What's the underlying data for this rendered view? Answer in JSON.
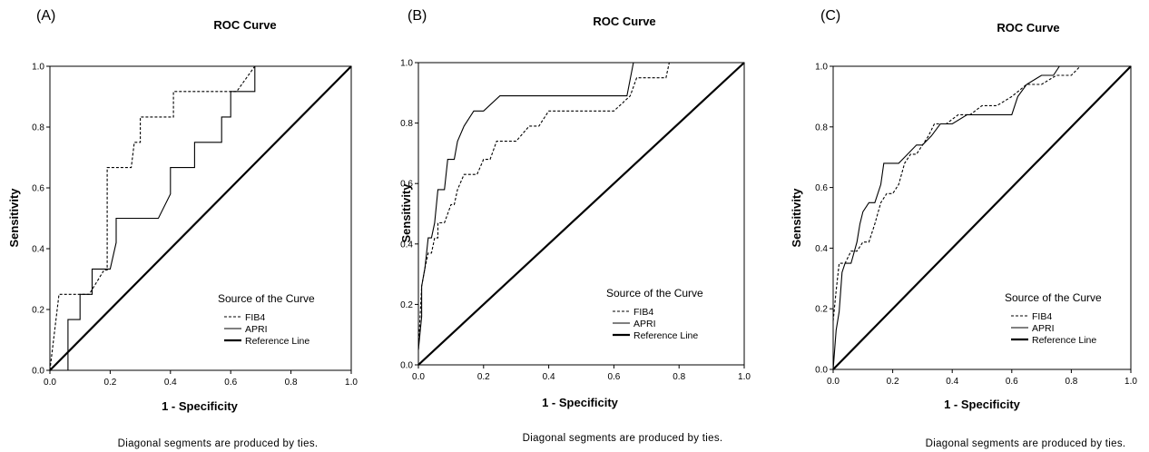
{
  "chart_data": [
    {
      "type": "line",
      "panel_label": "(A)",
      "title": "ROC Curve",
      "xlabel": "1 - Specificity",
      "ylabel": "Sensitivity",
      "xlim": [
        0,
        1
      ],
      "ylim": [
        0,
        1
      ],
      "xticks": [
        "0.0",
        "0.2",
        "0.4",
        "0.6",
        "0.8",
        "1.0"
      ],
      "yticks": [
        "0.0",
        "0.2",
        "0.4",
        "0.6",
        "0.8",
        "1.0"
      ],
      "legend_title": "Source of the Curve",
      "legend_position": "bottom-right",
      "footnote": "Diagonal segments are produced by ties.",
      "series": [
        {
          "name": "FIB4",
          "style": "dashed",
          "x": [
            0,
            0.03,
            0.03,
            0.13,
            0.18,
            0.19,
            0.19,
            0.27,
            0.28,
            0.3,
            0.3,
            0.4,
            0.41,
            0.41,
            0.49,
            0.5,
            0.5,
            0.62,
            0.68,
            0.7,
            1.0
          ],
          "y": [
            0,
            0.25,
            0.25,
            0.25,
            0.33,
            0.33,
            0.667,
            0.667,
            0.75,
            0.75,
            0.833,
            0.833,
            0.833,
            0.917,
            0.917,
            0.917,
            0.917,
            0.917,
            1.0,
            1.0,
            1.0
          ]
        },
        {
          "name": "APRI",
          "style": "solid",
          "x": [
            0,
            0.06,
            0.06,
            0.1,
            0.1,
            0.14,
            0.14,
            0.2,
            0.22,
            0.22,
            0.36,
            0.4,
            0.4,
            0.46,
            0.48,
            0.48,
            0.57,
            0.57,
            0.6,
            0.6,
            0.63,
            0.68,
            0.68,
            1.0
          ],
          "y": [
            0,
            0,
            0.167,
            0.167,
            0.25,
            0.25,
            0.333,
            0.333,
            0.42,
            0.5,
            0.5,
            0.58,
            0.667,
            0.667,
            0.667,
            0.75,
            0.75,
            0.833,
            0.833,
            0.917,
            0.917,
            0.917,
            1.0,
            1.0
          ]
        },
        {
          "name": "Reference Line",
          "style": "thick",
          "x": [
            0,
            1
          ],
          "y": [
            0,
            1
          ]
        }
      ]
    },
    {
      "type": "line",
      "panel_label": "(B)",
      "title": "ROC Curve",
      "xlabel": "1 - Specificity",
      "ylabel": "Sensitivity",
      "xlim": [
        0,
        1
      ],
      "ylim": [
        0,
        1
      ],
      "xticks": [
        "0.0",
        "0.2",
        "0.4",
        "0.6",
        "0.8",
        "1.0"
      ],
      "yticks": [
        "0.0",
        "0.2",
        "0.4",
        "0.6",
        "0.8",
        "1.0"
      ],
      "legend_title": "Source of the Curve",
      "legend_position": "bottom-right",
      "footnote": "Diagonal segments are produced by ties.",
      "series": [
        {
          "name": "FIB4",
          "style": "dashed",
          "x": [
            0,
            0.01,
            0.02,
            0.03,
            0.04,
            0.05,
            0.06,
            0.06,
            0.07,
            0.08,
            0.09,
            0.1,
            0.11,
            0.12,
            0.14,
            0.16,
            0.18,
            0.2,
            0.22,
            0.24,
            0.26,
            0.3,
            0.34,
            0.37,
            0.4,
            0.42,
            0.6,
            0.65,
            0.67,
            0.72,
            0.76,
            0.77,
            1.0
          ],
          "y": [
            0.05,
            0.26,
            0.32,
            0.37,
            0.37,
            0.42,
            0.42,
            0.47,
            0.47,
            0.47,
            0.5,
            0.53,
            0.53,
            0.58,
            0.63,
            0.63,
            0.63,
            0.68,
            0.68,
            0.74,
            0.74,
            0.74,
            0.79,
            0.79,
            0.84,
            0.84,
            0.84,
            0.89,
            0.95,
            0.95,
            0.95,
            1.0,
            1.0
          ]
        },
        {
          "name": "APRI",
          "style": "solid",
          "x": [
            0,
            0.01,
            0.01,
            0.02,
            0.03,
            0.04,
            0.05,
            0.06,
            0.08,
            0.09,
            0.11,
            0.12,
            0.14,
            0.17,
            0.2,
            0.25,
            0.35,
            0.6,
            0.64,
            0.66,
            0.68,
            1.0
          ],
          "y": [
            0.05,
            0.16,
            0.26,
            0.32,
            0.42,
            0.42,
            0.47,
            0.58,
            0.58,
            0.68,
            0.68,
            0.74,
            0.79,
            0.84,
            0.84,
            0.89,
            0.89,
            0.89,
            0.89,
            1.0,
            1.0,
            1.0
          ]
        },
        {
          "name": "Reference Line",
          "style": "thick",
          "x": [
            0,
            1
          ],
          "y": [
            0,
            1
          ]
        }
      ]
    },
    {
      "type": "line",
      "panel_label": "(C)",
      "title": "ROC Curve",
      "xlabel": "1 - Specificity",
      "ylabel": "Sensitivity",
      "xlim": [
        0,
        1
      ],
      "ylim": [
        0,
        1
      ],
      "xticks": [
        "0.0",
        "0.2",
        "0.4",
        "0.6",
        "0.8",
        "1.0"
      ],
      "yticks": [
        "0.0",
        "0.2",
        "0.4",
        "0.6",
        "0.8",
        "1.0"
      ],
      "legend_title": "Source of the Curve",
      "legend_position": "bottom-right",
      "footnote": "Diagonal segments are produced by ties.",
      "series": [
        {
          "name": "FIB4",
          "style": "dashed",
          "x": [
            0,
            0.01,
            0.02,
            0.03,
            0.04,
            0.06,
            0.08,
            0.1,
            0.12,
            0.14,
            0.16,
            0.18,
            0.2,
            0.22,
            0.24,
            0.26,
            0.28,
            0.3,
            0.32,
            0.34,
            0.38,
            0.42,
            0.46,
            0.5,
            0.55,
            0.6,
            0.65,
            0.7,
            0.75,
            0.8,
            0.83,
            1.0
          ],
          "y": [
            0.16,
            0.26,
            0.35,
            0.35,
            0.35,
            0.39,
            0.39,
            0.42,
            0.42,
            0.48,
            0.55,
            0.58,
            0.58,
            0.61,
            0.68,
            0.71,
            0.71,
            0.74,
            0.77,
            0.81,
            0.81,
            0.84,
            0.84,
            0.87,
            0.87,
            0.9,
            0.94,
            0.94,
            0.97,
            0.97,
            1.0,
            1.0
          ]
        },
        {
          "name": "APRI",
          "style": "solid",
          "x": [
            0,
            0.01,
            0.02,
            0.03,
            0.04,
            0.05,
            0.06,
            0.08,
            0.09,
            0.1,
            0.12,
            0.14,
            0.16,
            0.17,
            0.2,
            0.22,
            0.25,
            0.28,
            0.3,
            0.33,
            0.36,
            0.4,
            0.45,
            0.5,
            0.55,
            0.6,
            0.62,
            0.65,
            0.7,
            0.74,
            0.76,
            1.0
          ],
          "y": [
            0,
            0.13,
            0.19,
            0.32,
            0.35,
            0.35,
            0.35,
            0.42,
            0.48,
            0.52,
            0.55,
            0.55,
            0.61,
            0.68,
            0.68,
            0.68,
            0.71,
            0.74,
            0.74,
            0.77,
            0.81,
            0.81,
            0.84,
            0.84,
            0.84,
            0.84,
            0.9,
            0.94,
            0.97,
            0.97,
            1.0,
            1.0
          ]
        },
        {
          "name": "Reference Line",
          "style": "thick",
          "x": [
            0,
            1
          ],
          "y": [
            0,
            1
          ]
        }
      ]
    }
  ]
}
